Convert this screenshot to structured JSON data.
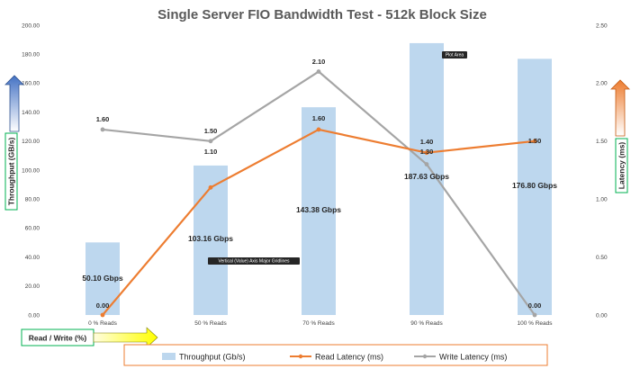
{
  "chart_data": {
    "type": "bar+line",
    "title": "Single Server FIO Bandwidth Test - 512k Block Size",
    "categories": [
      "0 % Reads",
      "50 % Reads",
      "70 % Reads",
      "90 % Reads",
      "100 % Reads"
    ],
    "series": [
      {
        "name": "Throughput (Gb/s)",
        "type": "bar",
        "axis": "left",
        "color": "#bdd7ee",
        "values": [
          50.1,
          103.16,
          143.38,
          187.63,
          176.8
        ],
        "labels": [
          "50.10 Gbps",
          "103.16 Gbps",
          "143.38 Gbps",
          "187.63 Gbps",
          "176.80 Gbps"
        ]
      },
      {
        "name": "Read Latency (ms)",
        "type": "line",
        "axis": "right",
        "color": "#ed7d31",
        "values": [
          0.0,
          1.1,
          1.6,
          1.4,
          1.5
        ],
        "labels": [
          "0.00",
          "1.10",
          "1.60",
          "1.40",
          "1.50"
        ]
      },
      {
        "name": "Write Latency (ms)",
        "type": "line",
        "axis": "right",
        "color": "#a5a5a5",
        "values": [
          1.6,
          1.5,
          2.1,
          1.3,
          0.0
        ],
        "labels": [
          "1.60",
          "1.50",
          "2.10",
          "1.30",
          "0.00"
        ]
      }
    ],
    "y_left": {
      "label": "Throughput (GB/s)",
      "ylim": [
        0,
        200
      ],
      "ticks": [
        "0.00",
        "20.00",
        "40.00",
        "60.00",
        "80.00",
        "100.00",
        "120.00",
        "140.00",
        "160.00",
        "180.00",
        "200.00"
      ]
    },
    "y_right": {
      "label": "Latency (ms)",
      "ylim": [
        0,
        2.5
      ],
      "ticks": [
        "0.00",
        "0.50",
        "1.00",
        "1.50",
        "2.00",
        "2.50"
      ]
    },
    "xlabel": "Read / Write (%)",
    "grid": false,
    "legend_position": "bottom",
    "tooltips": [
      "Plot Area",
      "Vertical (Value) Axis Major Gridlines"
    ],
    "colors": {
      "left_arrow": "#4472c4",
      "right_arrow": "#ed7d31",
      "x_arrow": "#ffff00",
      "label_box_border": "#00b050",
      "legend_border": "#ed7d31"
    }
  }
}
